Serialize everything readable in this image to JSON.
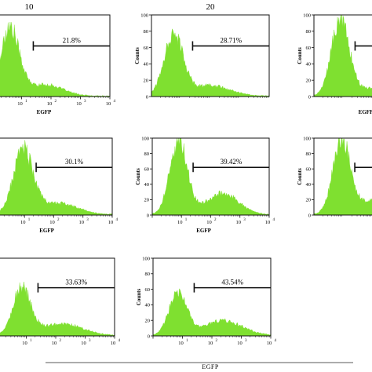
{
  "column_headers": [
    "10",
    "20",
    ""
  ],
  "footer_label": "EGFP",
  "chart_data": [
    {
      "type": "area",
      "xlabel": "EGFP",
      "ylabel": "",
      "x_scale": "log",
      "xlim": [
        1,
        10000
      ],
      "ylim": [
        0,
        100
      ],
      "x_ticks": [
        "",
        "10",
        "10",
        "10",
        "10"
      ],
      "x_tick_exp": [
        "",
        "1",
        "2",
        "3",
        "4"
      ],
      "y_ticks": [],
      "gate_label": "21.8%",
      "gate_from": 25,
      "gate_to": 10000,
      "peak": {
        "mu": 0.6,
        "sig": 0.32,
        "amp": 82
      },
      "tail": {
        "mu": 1.8,
        "sig": 0.6,
        "amp": 14
      },
      "color": "#7fe030"
    },
    {
      "type": "area",
      "xlabel": "",
      "ylabel": "Counts",
      "x_scale": "log",
      "xlim": [
        1,
        10000
      ],
      "ylim": [
        0,
        100
      ],
      "x_ticks": [],
      "x_tick_exp": [],
      "y_ticks": [
        "0",
        "20",
        "40",
        "60",
        "80",
        "100"
      ],
      "gate_label": "28.71%",
      "gate_from": 25,
      "gate_to": 10000,
      "peak": {
        "mu": 0.75,
        "sig": 0.32,
        "amp": 75
      },
      "tail": {
        "mu": 2.0,
        "sig": 0.65,
        "amp": 13
      },
      "color": "#7fe030"
    },
    {
      "type": "area",
      "xlabel": "EGFP",
      "ylabel": "Counts",
      "x_scale": "log",
      "xlim": [
        1,
        10000
      ],
      "ylim": [
        0,
        100
      ],
      "x_ticks": [],
      "x_tick_exp": [],
      "y_ticks": [
        "0",
        "20",
        "40",
        "60",
        "80",
        "100"
      ],
      "gate_label": "",
      "gate_from": 25,
      "gate_to": 10000,
      "peak": {
        "mu": 0.9,
        "sig": 0.3,
        "amp": 95
      },
      "tail": {
        "mu": 2.1,
        "sig": 0.6,
        "amp": 10
      },
      "color": "#7fe030"
    },
    {
      "type": "area",
      "xlabel": "EGFP",
      "ylabel": "",
      "x_scale": "log",
      "xlim": [
        1,
        10000
      ],
      "ylim": [
        0,
        100
      ],
      "x_ticks": [
        "",
        "10",
        "10",
        "10",
        "10"
      ],
      "x_tick_exp": [
        "",
        "1",
        "2",
        "3",
        "4"
      ],
      "y_ticks": [],
      "gate_label": "30.1%",
      "gate_from": 25,
      "gate_to": 10000,
      "peak": {
        "mu": 0.95,
        "sig": 0.33,
        "amp": 82
      },
      "tail": {
        "mu": 2.1,
        "sig": 0.7,
        "amp": 15
      },
      "color": "#7fe030"
    },
    {
      "type": "area",
      "xlabel": "EGFP",
      "ylabel": "Counts",
      "x_scale": "log",
      "xlim": [
        1,
        10000
      ],
      "ylim": [
        0,
        100
      ],
      "x_ticks": [
        "",
        "10",
        "10",
        "10",
        "10"
      ],
      "x_tick_exp": [
        "",
        "1",
        "2",
        "3",
        "4"
      ],
      "y_ticks": [
        "0",
        "20",
        "40",
        "60",
        "80",
        "100"
      ],
      "gate_label": "39.42%",
      "gate_from": 25,
      "gate_to": 10000,
      "peak": {
        "mu": 0.9,
        "sig": 0.3,
        "amp": 96
      },
      "tail": {
        "mu": 2.4,
        "sig": 0.55,
        "amp": 28
      },
      "color": "#7fe030"
    },
    {
      "type": "area",
      "xlabel": "",
      "ylabel": "Counts",
      "x_scale": "log",
      "xlim": [
        1,
        10000
      ],
      "ylim": [
        0,
        100
      ],
      "x_ticks": [],
      "x_tick_exp": [],
      "y_ticks": [
        "0",
        "20",
        "40",
        "60",
        "80",
        "100"
      ],
      "gate_label": "",
      "gate_from": 25,
      "gate_to": 10000,
      "peak": {
        "mu": 0.95,
        "sig": 0.3,
        "amp": 96
      },
      "tail": {
        "mu": 2.2,
        "sig": 0.6,
        "amp": 20
      },
      "color": "#7fe030"
    },
    {
      "type": "area",
      "xlabel": "",
      "ylabel": "",
      "x_scale": "log",
      "xlim": [
        1,
        10000
      ],
      "ylim": [
        0,
        100
      ],
      "x_ticks": [
        "",
        "10",
        "10",
        "10",
        "10"
      ],
      "x_tick_exp": [
        "",
        "1",
        "2",
        "3",
        "4"
      ],
      "y_ticks": [],
      "gate_label": "33.63%",
      "gate_from": 25,
      "gate_to": 10000,
      "peak": {
        "mu": 0.85,
        "sig": 0.3,
        "amp": 60
      },
      "tail": {
        "mu": 2.2,
        "sig": 0.7,
        "amp": 15
      },
      "color": "#7fe030"
    },
    {
      "type": "area",
      "xlabel": "",
      "ylabel": "Counts",
      "x_scale": "log",
      "xlim": [
        1,
        10000
      ],
      "ylim": [
        0,
        100
      ],
      "x_ticks": [
        "",
        "10",
        "10",
        "10",
        "10"
      ],
      "x_tick_exp": [
        "",
        "1",
        "2",
        "3",
        "4"
      ],
      "y_ticks": [
        "0",
        "20",
        "40",
        "60",
        "80",
        "100"
      ],
      "gate_label": "43.54%",
      "gate_from": 25,
      "gate_to": 10000,
      "peak": {
        "mu": 0.85,
        "sig": 0.3,
        "amp": 55
      },
      "tail": {
        "mu": 2.4,
        "sig": 0.65,
        "amp": 19
      },
      "color": "#7fe030"
    }
  ]
}
